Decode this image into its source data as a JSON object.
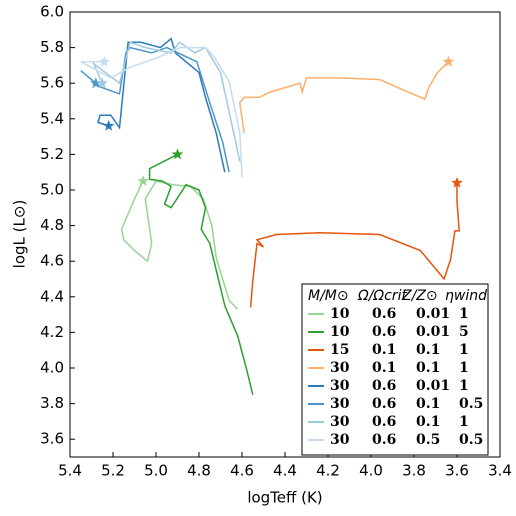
{
  "chart_data": {
    "type": "line",
    "x_label": "logTeff (K)",
    "y_label": "logL (L⊙)",
    "xlim": [
      5.4,
      3.4
    ],
    "ylim": [
      3.5,
      6.0
    ],
    "xticks": [
      5.4,
      5.2,
      {
        "value": 5.0,
        "label": "5.0"
      },
      4.8,
      4.6,
      4.4,
      4.2,
      {
        "value": 4.0,
        "label": "4.0"
      },
      3.8,
      3.6,
      3.4
    ],
    "yticks": [
      3.6,
      3.8,
      {
        "value": 4.0,
        "label": "4.0"
      },
      4.2,
      4.4,
      4.6,
      4.8,
      {
        "value": 5.0,
        "label": "5.0"
      },
      5.2,
      5.4,
      5.6,
      5.8,
      {
        "value": 6.0,
        "label": "6.0"
      }
    ],
    "legend_position": "lower right",
    "legend_header": [
      "M/M⊙",
      "Ω/Ωcrit",
      "Z/Z⊙",
      "ηwind"
    ],
    "series": [
      {
        "params": [
          10,
          0.6,
          0.01,
          1
        ],
        "color": "#98d594",
        "star": [
          5.06,
          5.05
        ],
        "x": [
          5.06,
          5.1,
          5.16,
          5.15,
          5.1,
          5.04,
          5.02,
          5.05,
          5.0,
          4.92,
          4.84,
          4.78,
          4.74,
          4.72,
          4.69,
          4.66,
          4.62
        ],
        "y": [
          5.05,
          4.95,
          4.78,
          4.72,
          4.66,
          4.6,
          4.7,
          4.95,
          5.05,
          5.03,
          5.02,
          4.95,
          4.8,
          4.62,
          4.5,
          4.38,
          4.33
        ]
      },
      {
        "params": [
          10,
          0.6,
          0.01,
          5
        ],
        "color": "#2ca02c",
        "star": [
          4.9,
          5.2
        ],
        "x": [
          4.9,
          5.03,
          5.03,
          4.97,
          4.93,
          4.96,
          4.93,
          4.86,
          4.8,
          4.77,
          4.79,
          4.75,
          4.72,
          4.68,
          4.62,
          4.58,
          4.55
        ],
        "y": [
          5.2,
          5.12,
          5.06,
          5.05,
          5.02,
          4.92,
          4.9,
          5.03,
          5.0,
          4.9,
          4.78,
          4.7,
          4.55,
          4.35,
          4.18,
          4.0,
          3.85
        ]
      },
      {
        "params": [
          15,
          0.1,
          0.1,
          1
        ],
        "color": "#e6550d",
        "star": [
          3.6,
          5.04
        ],
        "x": [
          4.56,
          4.55,
          4.53,
          4.5,
          4.53,
          4.44,
          4.24,
          3.96,
          3.77,
          3.66,
          3.63,
          3.61,
          3.59,
          3.6,
          3.6
        ],
        "y": [
          4.34,
          4.49,
          4.7,
          4.68,
          4.72,
          4.75,
          4.76,
          4.75,
          4.66,
          4.5,
          4.61,
          4.77,
          4.77,
          4.94,
          5.04
        ]
      },
      {
        "params": [
          30,
          0.1,
          0.1,
          1
        ],
        "color": "#fdae6b",
        "star": [
          3.64,
          5.72
        ],
        "x": [
          4.59,
          4.61,
          4.59,
          4.52,
          4.47,
          4.33,
          4.32,
          4.3,
          4.14,
          3.96,
          3.75,
          3.73,
          3.69,
          3.64
        ],
        "y": [
          5.32,
          5.49,
          5.52,
          5.52,
          5.55,
          5.6,
          5.55,
          5.63,
          5.63,
          5.62,
          5.51,
          5.58,
          5.66,
          5.72
        ]
      },
      {
        "params": [
          30,
          0.6,
          0.01,
          1
        ],
        "color": "#2b7bba",
        "star": [
          5.22,
          5.36
        ],
        "x": [
          5.22,
          5.27,
          5.26,
          5.21,
          5.17,
          5.13,
          5.07,
          4.98,
          4.93,
          4.91,
          4.8,
          4.77,
          4.72,
          4.68
        ],
        "y": [
          5.36,
          5.38,
          5.42,
          5.42,
          5.35,
          5.83,
          5.83,
          5.8,
          5.85,
          5.77,
          5.66,
          5.52,
          5.32,
          5.1
        ]
      },
      {
        "params": [
          30,
          0.6,
          0.1,
          0.5
        ],
        "color": "#4a98c9",
        "star": [
          5.28,
          5.6
        ],
        "x": [
          5.28,
          5.35,
          5.26,
          5.17,
          5.14,
          5.12,
          5.02,
          4.95,
          4.81,
          4.75,
          4.69,
          4.66
        ],
        "y": [
          5.6,
          5.67,
          5.58,
          5.54,
          5.77,
          5.8,
          5.77,
          5.8,
          5.72,
          5.49,
          5.27,
          5.1
        ]
      },
      {
        "params": [
          30,
          0.6,
          0.1,
          1
        ],
        "color": "#9ecae1",
        "star": [
          5.25,
          5.6
        ],
        "x": [
          5.25,
          5.29,
          5.17,
          5.12,
          5.05,
          4.93,
          4.89,
          4.82,
          4.77,
          4.7,
          4.66,
          4.61
        ],
        "y": [
          5.6,
          5.71,
          5.6,
          5.83,
          5.8,
          5.77,
          5.83,
          5.77,
          5.8,
          5.66,
          5.44,
          5.16
        ]
      },
      {
        "params": [
          30,
          0.6,
          0.5,
          0.5
        ],
        "color": "#c6dbef",
        "star": [
          5.24,
          5.72
        ],
        "x": [
          5.24,
          5.35,
          5.21,
          5.12,
          5.0,
          4.89,
          4.77,
          4.73,
          4.66,
          4.61,
          4.6
        ],
        "y": [
          5.72,
          5.72,
          5.63,
          5.69,
          5.74,
          5.8,
          5.8,
          5.75,
          5.61,
          5.32,
          5.07
        ]
      }
    ]
  }
}
